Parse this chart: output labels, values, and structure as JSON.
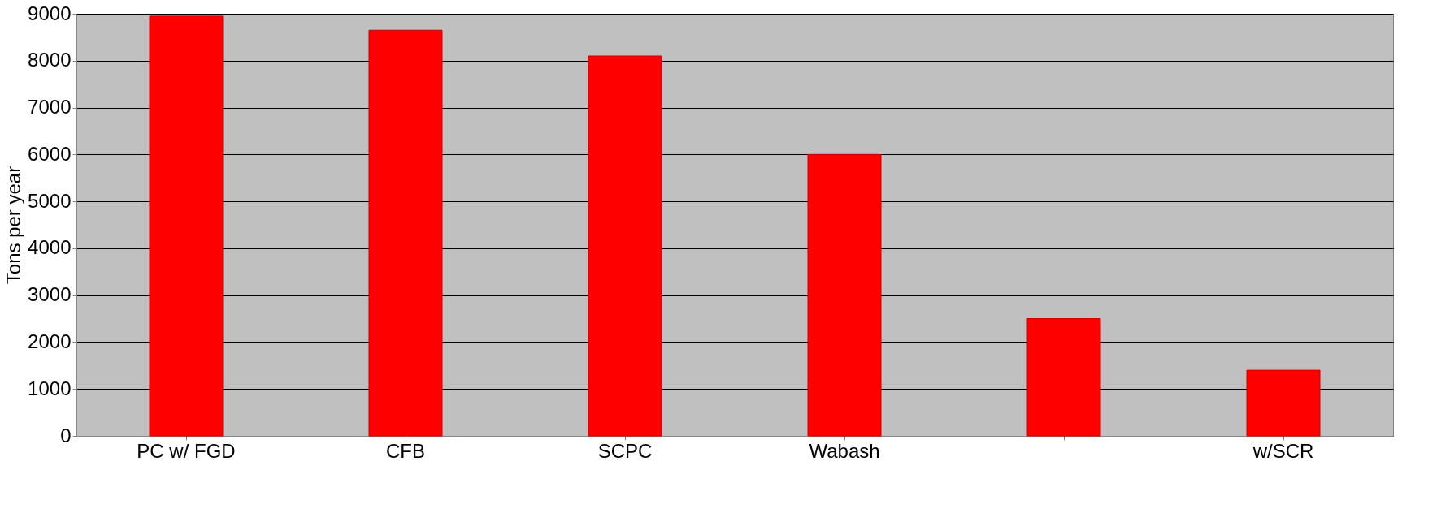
{
  "chart_data": {
    "type": "bar",
    "ylabel": "Tons per year",
    "categories": [
      "PC w/ FGD",
      "CFB",
      "SCPC",
      "Wabash",
      null,
      "w/SCR"
    ],
    "values": [
      8950,
      8650,
      8100,
      6000,
      2500,
      1400
    ],
    "color": "#ff0000",
    "ylim": [
      0,
      9000
    ],
    "yticks": [
      0,
      1000,
      2000,
      3000,
      4000,
      5000,
      6000,
      7000,
      8000,
      9000
    ],
    "grid": "y"
  }
}
